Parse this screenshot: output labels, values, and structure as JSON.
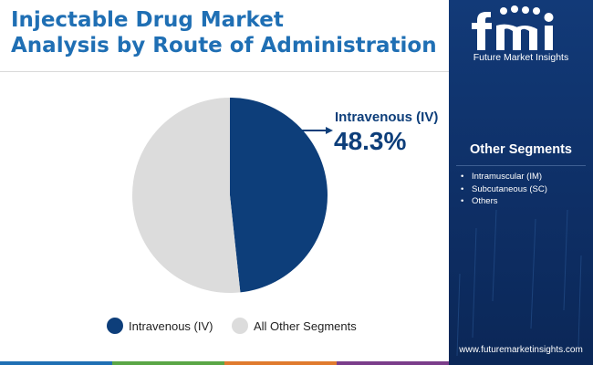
{
  "title_lines": [
    "Injectable Drug Market",
    "Analysis by Route of Administration"
  ],
  "brand": {
    "logo_text": "fmi",
    "subtitle": "Future Market Insights",
    "website": "www.futuremarketinsights.com"
  },
  "other_segments": {
    "heading": "Other Segments",
    "items": [
      "Intramuscular (IM)",
      "Subcutaneous (SC)",
      "Others"
    ]
  },
  "callout": {
    "label": "Intravenous (IV)",
    "value": "48.3%"
  },
  "colors": {
    "title": "#1f6fb4",
    "iv_slice": "#0d3e7a",
    "other_slice": "#dcdcdc",
    "sidebar": "#123a78",
    "bottom_bar": [
      "#1f6fb4",
      "#5aa646",
      "#e07a2e",
      "#7a3d8a"
    ]
  },
  "chart_data": {
    "type": "pie",
    "slices": [
      {
        "name": "Intravenous (IV)",
        "value": 48.3,
        "color": "#0d3e7a"
      },
      {
        "name": "All Other Segments",
        "value": 51.7,
        "color": "#dcdcdc"
      }
    ],
    "legend": [
      "Intravenous (IV)",
      "All Other Segments"
    ],
    "legend_position": "bottom",
    "start_angle": "12 o'clock, clockwise"
  }
}
